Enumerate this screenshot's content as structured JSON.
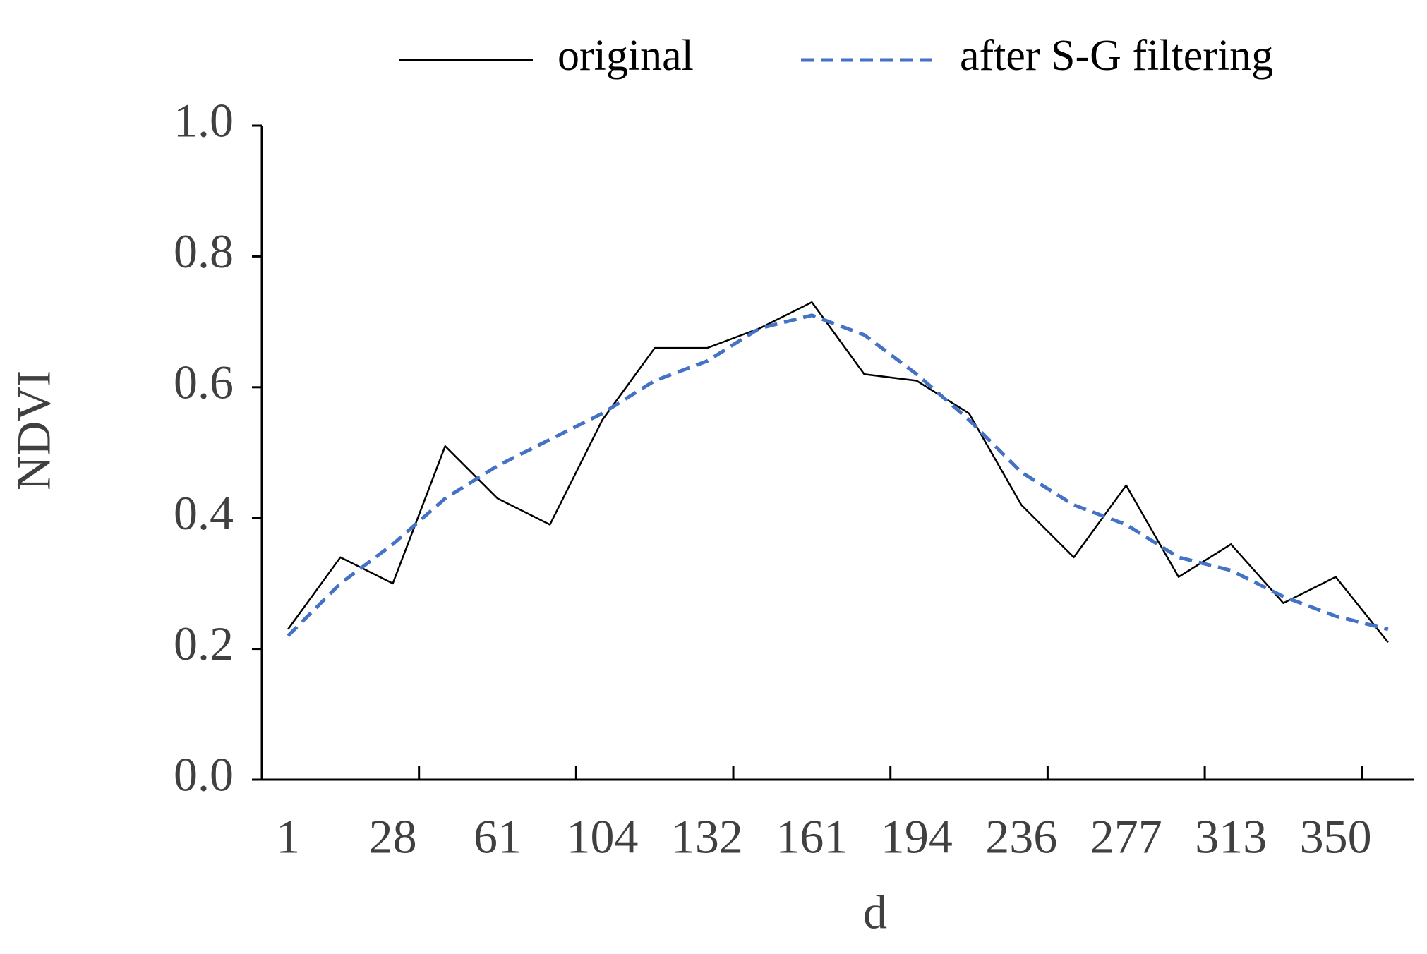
{
  "chart_data": {
    "type": "line",
    "x_label": "d",
    "y_label": "NDVI",
    "categories": [
      "1",
      null,
      "28",
      null,
      "61",
      null,
      "104",
      null,
      "132",
      null,
      "161",
      null,
      "194",
      null,
      "236",
      null,
      "277",
      null,
      "313",
      null,
      "350",
      null
    ],
    "series": [
      {
        "name": "original",
        "color": "#000000",
        "dashed": false,
        "values": [
          0.23,
          0.34,
          0.3,
          0.51,
          0.43,
          0.39,
          0.55,
          0.66,
          0.66,
          0.69,
          0.73,
          0.62,
          0.61,
          0.56,
          0.42,
          0.34,
          0.45,
          0.31,
          0.36,
          0.27,
          0.31,
          0.21
        ]
      },
      {
        "name": "after S-G filtering",
        "color": "#4472c4",
        "dashed": true,
        "values": [
          0.22,
          0.3,
          0.36,
          0.43,
          0.48,
          0.52,
          0.56,
          0.61,
          0.64,
          0.69,
          0.71,
          0.68,
          0.62,
          0.55,
          0.47,
          0.42,
          0.39,
          0.34,
          0.32,
          0.28,
          0.25,
          0.23
        ]
      }
    ],
    "ylim": [
      0,
      1
    ],
    "yticks": [
      {
        "value": 0,
        "label": "0.0"
      },
      0.2,
      0.4,
      0.6,
      0.8,
      {
        "value": 1,
        "label": "1.0"
      }
    ],
    "legend": "top",
    "grid": false
  }
}
